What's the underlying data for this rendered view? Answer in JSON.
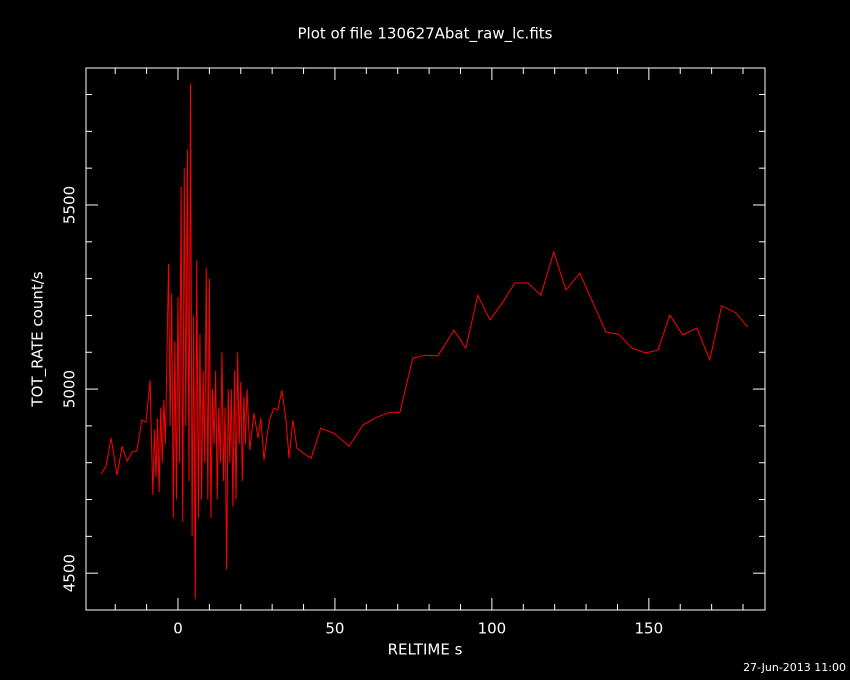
{
  "chart_data": {
    "type": "line",
    "title": "Plot of file 130627Abat_raw_lc.fits",
    "x_label": "RELTIME  s",
    "y_label": "TOT_RATE  count/s",
    "footer": "27-Jun-2013 11:00",
    "color": "#ff0000",
    "xlim": [
      -29.3,
      187
    ],
    "ylim": [
      4400,
      5872
    ],
    "xticks": [
      0,
      50,
      100,
      150
    ],
    "yticks": [
      4500,
      5000,
      5500
    ],
    "xminorticks": [
      -20,
      -10,
      10,
      20,
      30,
      40,
      60,
      70,
      80,
      90,
      110,
      120,
      130,
      140,
      160,
      170,
      180
    ],
    "yminorticks": [
      4600,
      4700,
      4800,
      4900,
      5100,
      5200,
      5300,
      5400,
      5600,
      5700,
      5800
    ],
    "x": [
      -24.5,
      -22.9,
      -21.3,
      -19.4,
      -17.8,
      -16.2,
      -14.6,
      -13.1,
      -11.5,
      -10.2,
      -8.9,
      -8.0,
      -7.5,
      -7,
      -6.5,
      -6,
      -5.5,
      -5,
      -4.5,
      -4,
      -3.5,
      -3,
      -2.5,
      -2,
      -1.5,
      -1,
      -0.5,
      0,
      0.5,
      1,
      1.5,
      2,
      2.5,
      3,
      3.5,
      4,
      4.5,
      5,
      5.5,
      6,
      6.5,
      7,
      7.5,
      8,
      8.5,
      9,
      9.5,
      10,
      10.5,
      11,
      11.5,
      12,
      12.5,
      13,
      13.5,
      14,
      14.5,
      15,
      15.5,
      16,
      16.5,
      17,
      17.5,
      18,
      18.5,
      19,
      19.5,
      20,
      20.5,
      21,
      21.5,
      22,
      22.3,
      22.9,
      24.2,
      25.5,
      26.4,
      27.4,
      28.3,
      29.3,
      30.6,
      31.8,
      33.1,
      34.4,
      35.4,
      36.6,
      37.9,
      39.5,
      42.4,
      45.5,
      49.7,
      54.5,
      58.9,
      62.7,
      67.5,
      70.7,
      74.8,
      78.7,
      82.8,
      87.9,
      91.7,
      95.5,
      99.4,
      103.5,
      107.3,
      111.5,
      115.6,
      119.7,
      123.6,
      128.0,
      136.3,
      140.4,
      144.6,
      149.0,
      152.9,
      156.7,
      160.8,
      165.3,
      169.4,
      173.2,
      177.7,
      181.5
    ],
    "values": [
      4769,
      4791,
      4867,
      4766,
      4845,
      4804,
      4829,
      4832,
      4916,
      4910,
      5024,
      4712,
      4890,
      4760,
      4920,
      4720,
      4950,
      4800,
      4970,
      4850,
      5100,
      5340,
      4900,
      5260,
      4650,
      5130,
      4700,
      5250,
      4800,
      5550,
      4640,
      5600,
      4900,
      5650,
      4750,
      5830,
      4600,
      5200,
      4430,
      5350,
      4650,
      5150,
      4700,
      5050,
      4800,
      5330,
      4700,
      5300,
      4650,
      5000,
      4850,
      5050,
      4700,
      4950,
      4800,
      5100,
      4750,
      4950,
      4510,
      5000,
      4800,
      5000,
      4680,
      5050,
      4700,
      5100,
      4850,
      5020,
      4750,
      4980,
      4850,
      5000,
      4943,
      4834,
      4935,
      4867,
      4921,
      4807,
      4870,
      4921,
      4948,
      4943,
      4997,
      4916,
      4812,
      4916,
      4840,
      4829,
      4812,
      4894,
      4880,
      4845,
      4902,
      4921,
      4937,
      4937,
      5084,
      5092,
      5090,
      5160,
      5111,
      5255,
      5188,
      5236,
      5288,
      5288,
      5255,
      5372,
      5269,
      5315,
      5155,
      5149,
      5111,
      5098,
      5106,
      5201,
      5147,
      5166,
      5079,
      5226,
      5207,
      5168
    ]
  }
}
